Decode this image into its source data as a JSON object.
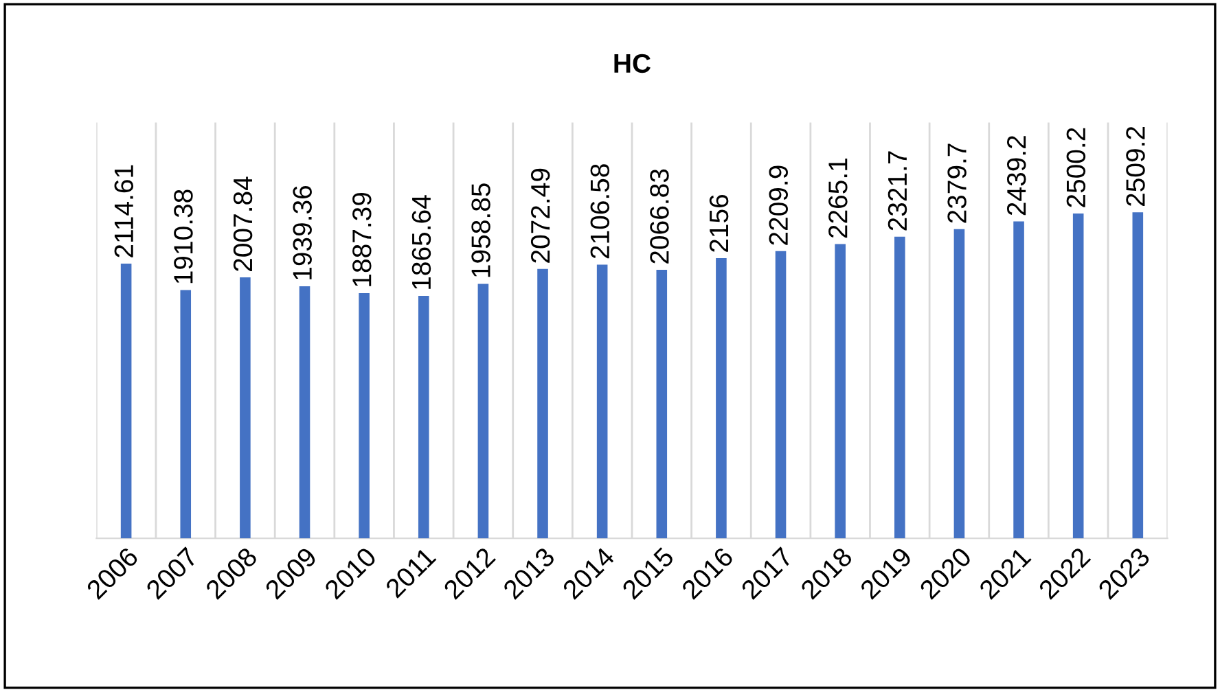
{
  "chart_data": {
    "type": "bar",
    "title": "HC",
    "categories": [
      "2006",
      "2007",
      "2008",
      "2009",
      "2010",
      "2011",
      "2012",
      "2013",
      "2014",
      "2015",
      "2016",
      "2017",
      "2018",
      "2019",
      "2020",
      "2021",
      "2022",
      "2023"
    ],
    "values": [
      2114.61,
      1910.38,
      2007.84,
      1939.36,
      1887.39,
      1865.64,
      1958.85,
      2072.49,
      2106.58,
      2066.83,
      2156,
      2209.9,
      2265.1,
      2321.7,
      2379.7,
      2439.2,
      2500.2,
      2509.2
    ],
    "color": "#4472c4",
    "ylim": [
      0,
      3200
    ],
    "tick_labels": "x",
    "grid": "x",
    "data_labels": true,
    "legend": false
  }
}
